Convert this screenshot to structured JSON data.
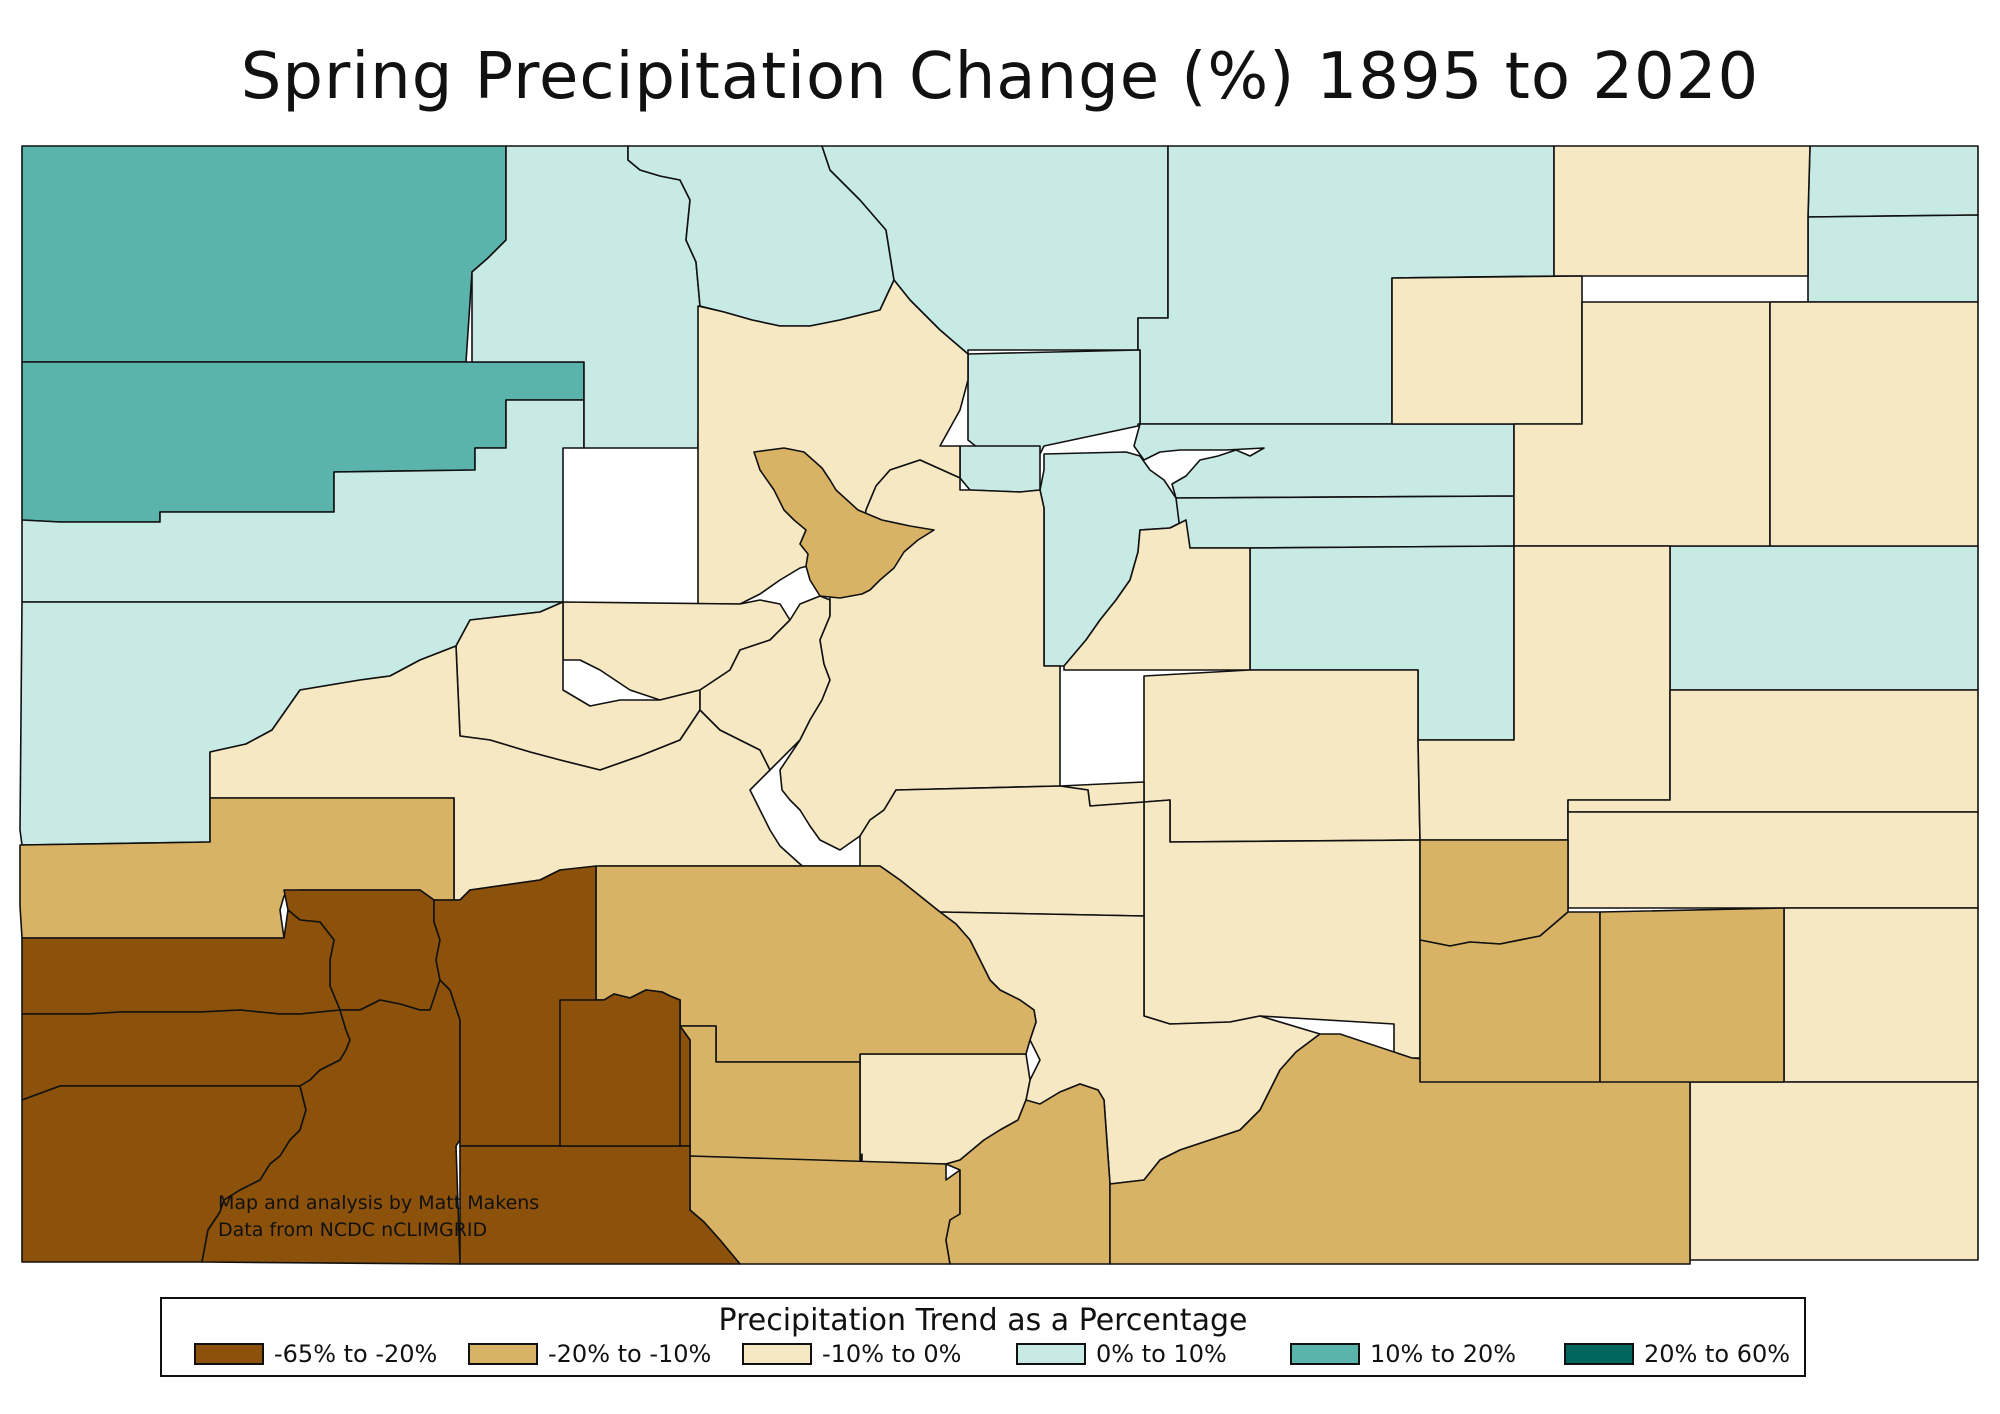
{
  "title": "Spring Precipitation Change (%) 1895 to 2020",
  "credit": {
    "line1": "Map and analysis by Matt Makens",
    "line2": "Data from NCDC nCLIMGRID"
  },
  "legend": {
    "title": "Precipitation Trend as a Percentage",
    "classes": [
      {
        "label": "-65% to -20%",
        "color": "#8c510a"
      },
      {
        "label": "-20% to -10%",
        "color": "#d8b365"
      },
      {
        "label": "-10% to 0%",
        "color": "#f6e8c3"
      },
      {
        "label": "0% to 10%",
        "color": "#c7eae5"
      },
      {
        "label": "10% to 20%",
        "color": "#5ab4ac"
      },
      {
        "label": "20% to 60%",
        "color": "#01665e"
      }
    ]
  }
}
